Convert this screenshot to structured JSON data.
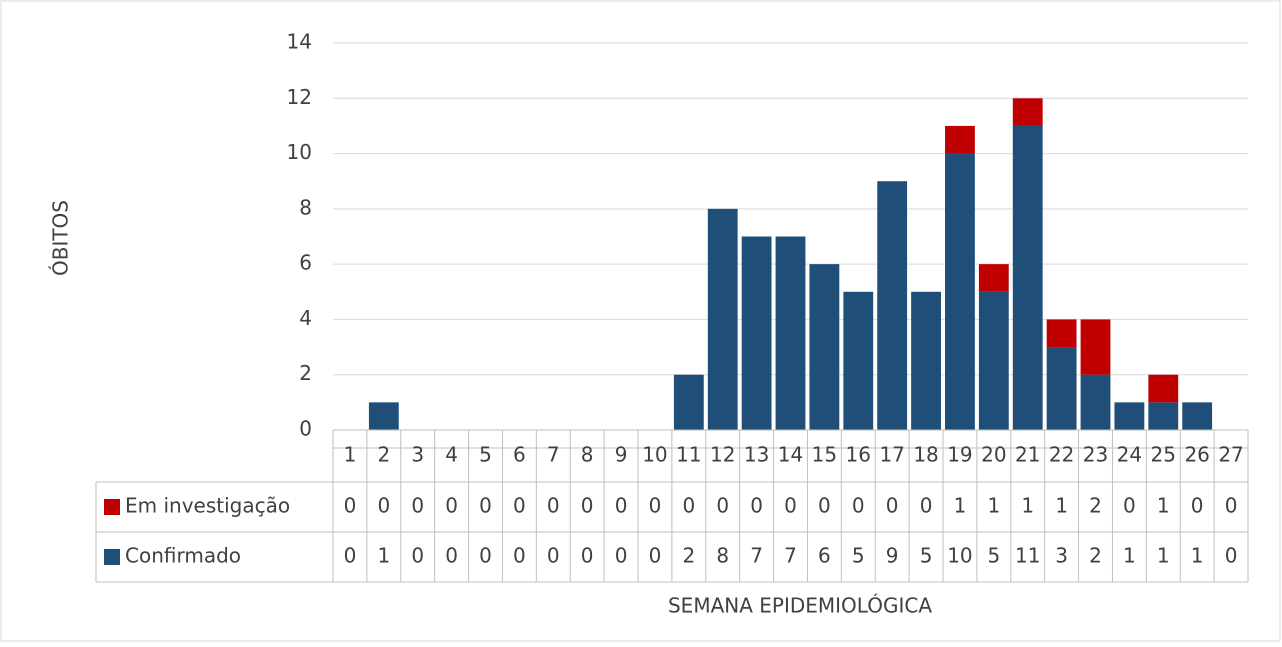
{
  "chart_data": {
    "type": "stacked_bar",
    "y_axis_label": "ÓBITOS",
    "x_axis_label": "SEMANA EPIDEMIOLÓGICA",
    "categories": [
      "1",
      "2",
      "3",
      "4",
      "5",
      "6",
      "7",
      "8",
      "9",
      "10",
      "11",
      "12",
      "13",
      "14",
      "15",
      "16",
      "17",
      "18",
      "19",
      "20",
      "21",
      "22",
      "23",
      "24",
      "25",
      "26",
      "27"
    ],
    "series": [
      {
        "name": "Em investigação",
        "color": "#c00000",
        "values": [
          0,
          0,
          0,
          0,
          0,
          0,
          0,
          0,
          0,
          0,
          0,
          0,
          0,
          0,
          0,
          0,
          0,
          0,
          1,
          1,
          1,
          1,
          2,
          0,
          1,
          0,
          0
        ]
      },
      {
        "name": "Confirmado",
        "color": "#1f4e79",
        "values": [
          0,
          1,
          0,
          0,
          0,
          0,
          0,
          0,
          0,
          0,
          2,
          8,
          7,
          7,
          6,
          5,
          9,
          5,
          10,
          5,
          11,
          3,
          2,
          1,
          1,
          1,
          0
        ]
      }
    ],
    "ylim": [
      0,
      14
    ],
    "yticks": [
      0,
      2,
      4,
      6,
      8,
      10,
      12,
      14
    ],
    "grid": true
  }
}
